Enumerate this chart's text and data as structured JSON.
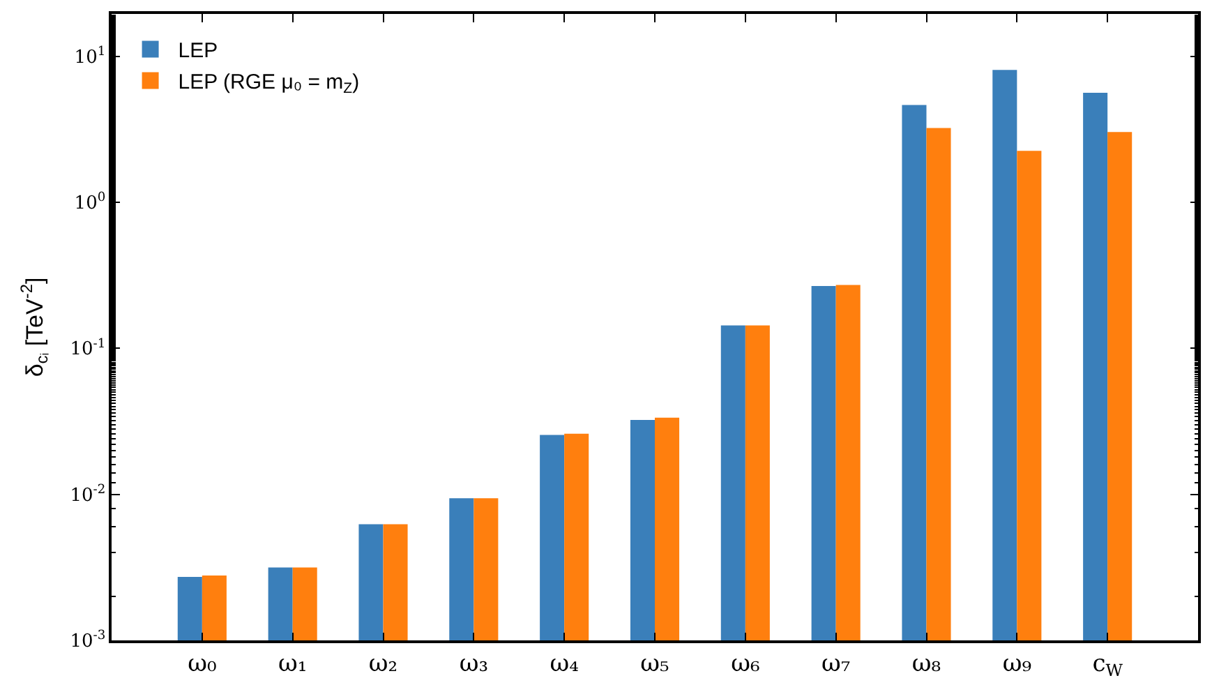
{
  "chart_data": {
    "type": "bar",
    "ylabel": "δ$_{cᵢ}$ [TeV$^{-2}$]",
    "categories": [
      "ω₀",
      "ω₁",
      "ω₂",
      "ω₃",
      "ω₄",
      "ω₅",
      "ω₆",
      "ω₇",
      "ω₈",
      "ω₉",
      "c$_{W}$"
    ],
    "series": [
      {
        "name": "LEP",
        "color": "#3a7fba",
        "values": [
          0.00272,
          0.00316,
          0.00625,
          0.0094,
          0.0255,
          0.0323,
          0.1435,
          0.267,
          4.64,
          8.07,
          5.62
        ]
      },
      {
        "name": "LEP (RGE μ₀ = m$_{Z}$)",
        "color": "#ff7f0e",
        "values": [
          0.00278,
          0.00316,
          0.00625,
          0.0094,
          0.026,
          0.0335,
          0.1435,
          0.272,
          3.23,
          2.25,
          3.03
        ]
      }
    ],
    "log": true,
    "ylim": [
      0.001,
      19.5
    ],
    "yticks": [
      {
        "value": 0.001,
        "label": "10$^{-3}$"
      },
      {
        "value": 0.01,
        "label": "10$^{-2}$"
      },
      {
        "value": 0.1,
        "label": "10$^{-1}$"
      },
      {
        "value": 1,
        "label": "10$^{0}$"
      },
      {
        "value": 10,
        "label": "10$^{1}$"
      }
    ],
    "legend": "top left"
  }
}
